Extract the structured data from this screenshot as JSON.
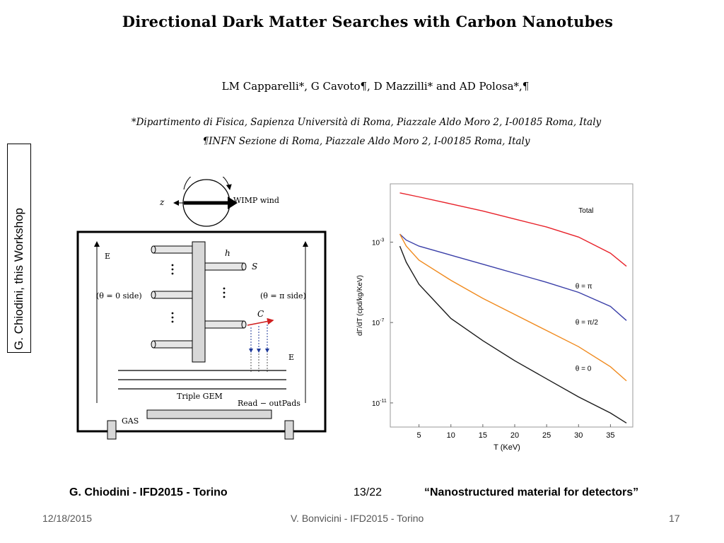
{
  "paper": {
    "title": "Directional Dark Matter Searches with Carbon Nanotubes",
    "authors": "LM Capparelli*, G Cavoto¶, D Mazzilli* and AD Polosa*,¶",
    "affiliation_1": "*Dipartimento di Fisica, Sapienza Università di Roma, Piazzale Aldo Moro 2, I-00185 Roma, Italy",
    "affiliation_2": "¶INFN Sezione di Roma, Piazzale Aldo Moro 2, I-00185 Roma, Italy"
  },
  "side_label": "G. Chiodini, this Workshop",
  "diagram": {
    "z_label": "z",
    "wind_label": "WIMP wind",
    "e_left": "E",
    "e_right": "E",
    "e_bottom": "E",
    "left_side": "(θ = 0 side)",
    "right_side": "(θ = π side)",
    "h_label": "h",
    "s_label": "S",
    "c_label": "C",
    "gem_label": "Triple GEM",
    "readout_label": "Read − outPads",
    "gas_label": "GAS"
  },
  "chart_data": {
    "type": "line",
    "xlabel": "T (KeV)",
    "ylabel": "dΓ/dT (cpd/kg/KeV)",
    "y_scale": "log",
    "x_range": [
      0.5,
      38.5
    ],
    "y_range": [
      -12.2,
      -0.1
    ],
    "x_ticks": [
      5,
      10,
      15,
      20,
      25,
      30,
      35
    ],
    "y_ticks": [
      {
        "value": -3,
        "label_base": "10",
        "label_exp": "-3"
      },
      {
        "value": -7,
        "label_base": "10",
        "label_exp": "-7"
      },
      {
        "value": -11,
        "label_base": "10",
        "label_exp": "-11"
      }
    ],
    "y_value_units": "log10(dΓ/dT)",
    "series": [
      {
        "name": "Total",
        "color": "#e8222a",
        "x": [
          2,
          5,
          10,
          15,
          20,
          25,
          30,
          35,
          37.5
        ],
        "y": [
          -0.55,
          -0.75,
          -1.1,
          -1.45,
          -1.85,
          -2.25,
          -2.75,
          -3.55,
          -4.2
        ]
      },
      {
        "name": "θ = π",
        "color": "#3a3fa8",
        "x": [
          2,
          3,
          5,
          10,
          15,
          20,
          25,
          30,
          35,
          37.5
        ],
        "y": [
          -2.6,
          -2.9,
          -3.2,
          -3.65,
          -4.1,
          -4.55,
          -5.0,
          -5.5,
          -6.2,
          -6.9
        ]
      },
      {
        "name": "θ = π/2",
        "color": "#f08a1e",
        "x": [
          2,
          3,
          5,
          10,
          15,
          20,
          25,
          30,
          35,
          37.5
        ],
        "y": [
          -2.6,
          -3.2,
          -3.9,
          -4.9,
          -5.8,
          -6.6,
          -7.4,
          -8.2,
          -9.2,
          -9.9
        ]
      },
      {
        "name": "θ = 0",
        "color": "#1a1a1a",
        "x": [
          2,
          3,
          5,
          10,
          15,
          20,
          25,
          30,
          35,
          37.5
        ],
        "y": [
          -3.2,
          -4.0,
          -5.1,
          -6.8,
          -7.9,
          -8.9,
          -9.8,
          -10.7,
          -11.5,
          -12.0
        ]
      }
    ]
  },
  "footer": {
    "left": "G. Chiodini - IFD2015 - Torino",
    "page": "13/22",
    "right": "“Nanostructured material for detectors”"
  },
  "slide": {
    "date": "12/18/2015",
    "center": "V. Bonvicini - IFD2015 - Torino",
    "number": "17"
  }
}
